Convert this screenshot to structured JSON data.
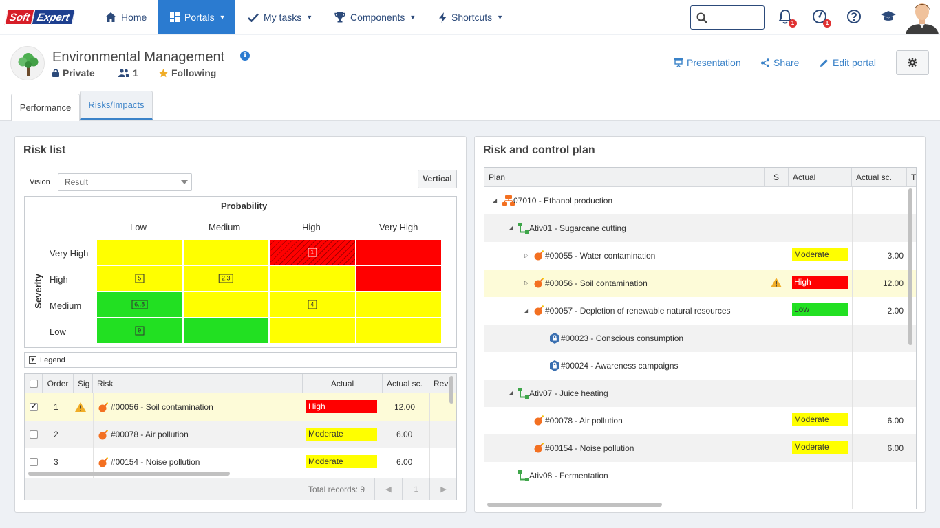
{
  "app": {
    "logo_part1": "Soft",
    "logo_part2": "Expert"
  },
  "nav": {
    "home": "Home",
    "portals": "Portals",
    "my_tasks": "My tasks",
    "components": "Components",
    "shortcuts": "Shortcuts",
    "search_placeholder": "",
    "notifications_count": "1",
    "alerts_count": "1"
  },
  "portal": {
    "title": "Environmental Management",
    "privacy": "Private",
    "members": "1",
    "following": "Following",
    "actions": {
      "presentation": "Presentation",
      "share": "Share",
      "edit": "Edit portal"
    },
    "tabs": [
      "Performance",
      "Risks/Impacts"
    ],
    "active_tab": "Risks/Impacts"
  },
  "risk_list": {
    "title": "Risk list",
    "vision_label": "Vision",
    "vision_value": "Result",
    "vertical_button": "Vertical",
    "matrix": {
      "probability_label": "Probability",
      "severity_label": "Severity",
      "columns": [
        "Low",
        "Medium",
        "High",
        "Very High"
      ],
      "rows": [
        "Very High",
        "High",
        "Medium",
        "Low"
      ],
      "colors": {
        "red": "#ff0000",
        "yellow": "#ffff00",
        "green": "#22e022"
      },
      "cells": [
        [
          "yellow",
          "yellow",
          "red-hatched",
          "red"
        ],
        [
          "yellow",
          "yellow",
          "yellow",
          "red"
        ],
        [
          "green",
          "yellow",
          "yellow",
          "yellow"
        ],
        [
          "green",
          "green",
          "yellow",
          "yellow"
        ]
      ],
      "markers": [
        {
          "row": 0,
          "col": 2,
          "label": "1"
        },
        {
          "row": 1,
          "col": 0,
          "label": "5"
        },
        {
          "row": 1,
          "col": 1,
          "label": "2,3"
        },
        {
          "row": 2,
          "col": 0,
          "label": "6..8"
        },
        {
          "row": 2,
          "col": 2,
          "label": "4"
        },
        {
          "row": 3,
          "col": 0,
          "label": "9"
        }
      ]
    },
    "legend_label": "Legend",
    "columns": [
      "Order",
      "Sig",
      "Risk",
      "Actual",
      "Actual sc.",
      "Rev"
    ],
    "rows": [
      {
        "order": "1",
        "sig": "warning",
        "risk": "#00056 - Soil contamination",
        "actual": "High",
        "level": "high",
        "score": "12.00",
        "checked": true
      },
      {
        "order": "2",
        "sig": "",
        "risk": "#00078 - Air pollution",
        "actual": "Moderate",
        "level": "moderate",
        "score": "6.00",
        "checked": false
      },
      {
        "order": "3",
        "sig": "",
        "risk": "#00154 - Noise pollution",
        "actual": "Moderate",
        "level": "moderate",
        "score": "6.00",
        "checked": false
      }
    ],
    "total_records": "Total records: 9",
    "page": "1"
  },
  "control_plan": {
    "title": "Risk and control plan",
    "columns": [
      "Plan",
      "S",
      "Actual",
      "Actual sc.",
      "T"
    ],
    "rows": [
      {
        "text": "07010 - Ethanol production",
        "type": "process",
        "expander": "open"
      },
      {
        "text": "Ativ01 - Sugarcane cutting",
        "type": "activity",
        "expander": "open"
      },
      {
        "text": "#00055 - Water contamination",
        "type": "risk",
        "expander": "closed",
        "actual": "Moderate",
        "level": "moderate",
        "score": "3.00"
      },
      {
        "text": "#00056 - Soil contamination",
        "type": "risk",
        "expander": "closed",
        "actual": "High",
        "level": "high",
        "score": "12.00",
        "warning": true
      },
      {
        "text": "#00057 - Depletion of renewable natural resources",
        "type": "risk",
        "expander": "open",
        "actual": "Low",
        "level": "low",
        "score": "2.00"
      },
      {
        "text": "#00023 - Conscious consumption",
        "type": "control"
      },
      {
        "text": "#00024 - Awareness campaigns",
        "type": "control"
      },
      {
        "text": "Ativ07 - Juice heating",
        "type": "activity",
        "expander": "open"
      },
      {
        "text": "#00078 - Air pollution",
        "type": "risk",
        "actual": "Moderate",
        "level": "moderate",
        "score": "6.00"
      },
      {
        "text": "#00154 - Noise pollution",
        "type": "risk",
        "actual": "Moderate",
        "level": "moderate",
        "score": "6.00"
      },
      {
        "text": "Ativ08 - Fermentation",
        "type": "activity"
      }
    ]
  }
}
